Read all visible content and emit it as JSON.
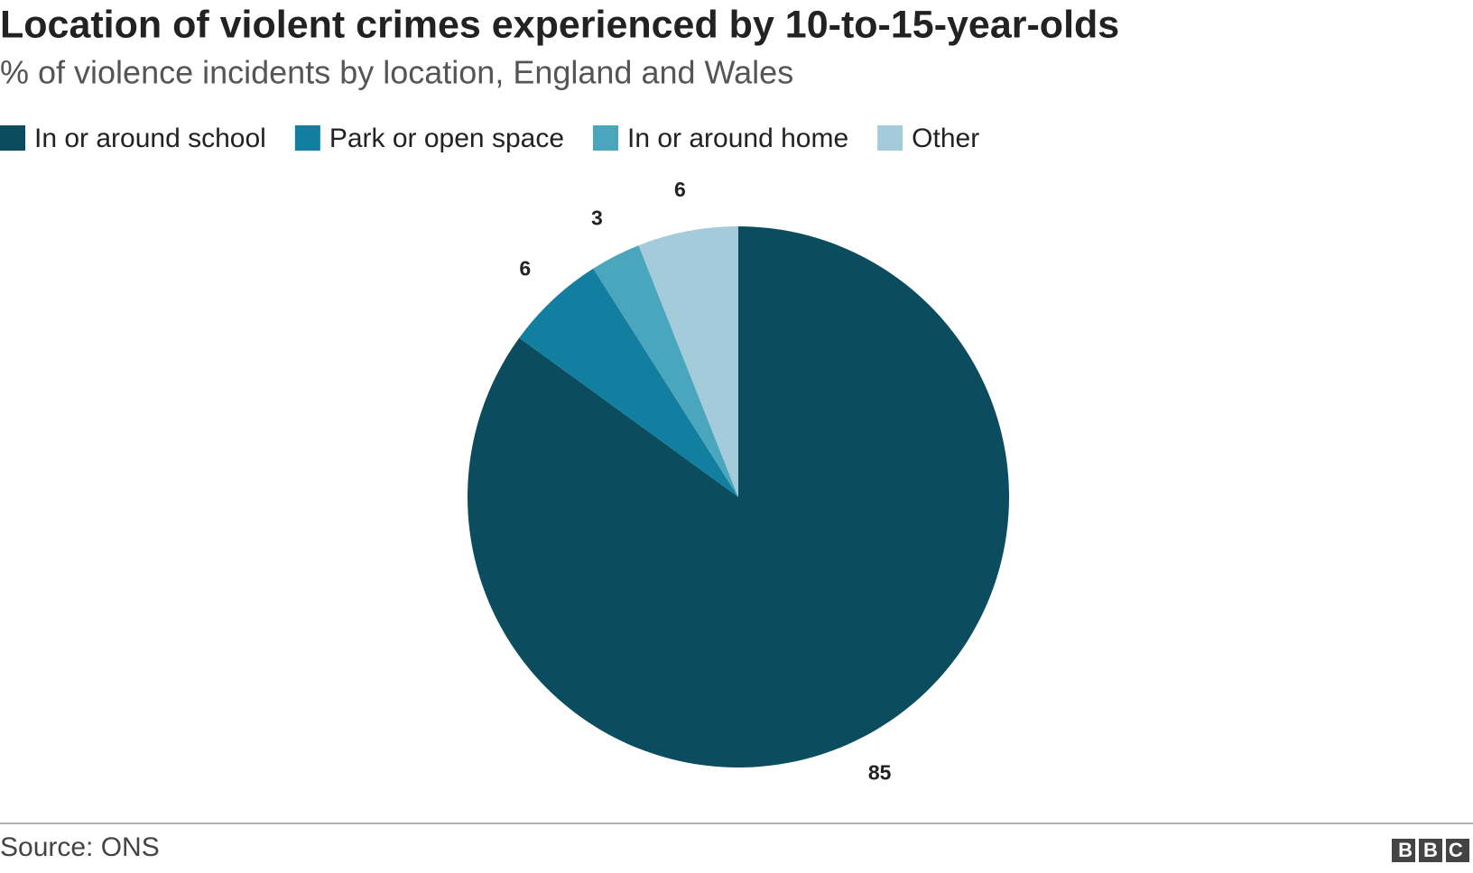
{
  "chart_data": {
    "type": "pie",
    "title": "Location of violent crimes experienced by 10-to-15-year-olds",
    "subtitle": "% of violence incidents by location, England and Wales",
    "categories": [
      "In or around school",
      "Park or open space",
      "In or around home",
      "Other"
    ],
    "values": [
      85,
      6,
      3,
      6
    ],
    "colors": [
      "#0b4d5f",
      "#137fa0",
      "#4aa6bd",
      "#a3cbd9"
    ],
    "source": "Source: ONS",
    "logo": "BBC"
  }
}
